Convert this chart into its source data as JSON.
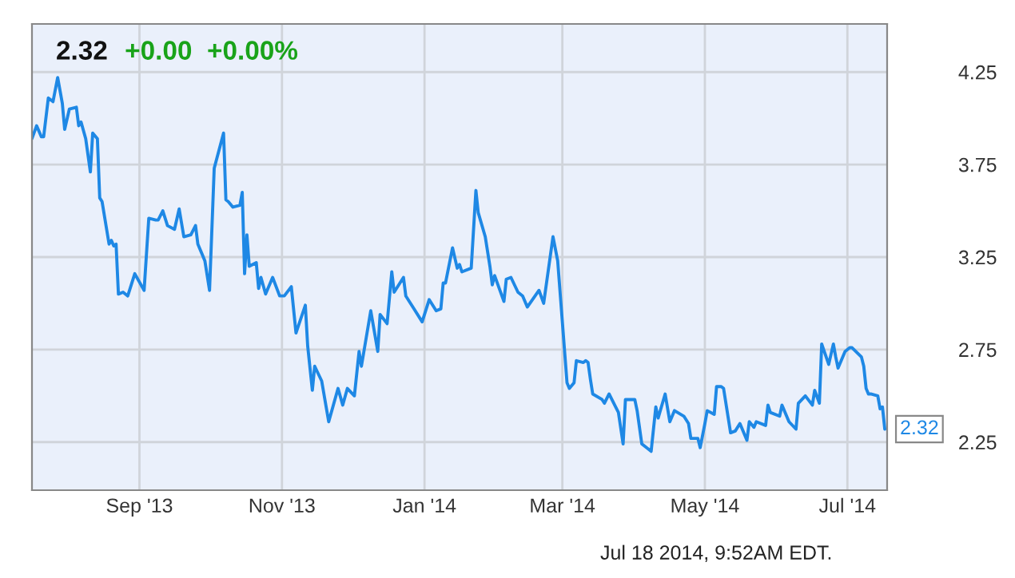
{
  "chart_data": {
    "type": "line",
    "title": "2.32",
    "subtitle": "+0.00  +0.00%",
    "annotations": [
      {
        "text": "2.32",
        "x": "2014-07-17",
        "y": 2.32
      },
      "Jul 18 2014, 9:52AM EDT."
    ],
    "x": [
      "2013-07-17",
      "2013-07-19",
      "2013-07-21",
      "2013-07-22",
      "2013-07-24",
      "2013-07-26",
      "2013-07-28",
      "2013-07-30",
      "2013-07-31",
      "2013-08-02",
      "2013-08-05",
      "2013-08-06",
      "2013-08-07",
      "2013-08-09",
      "2013-08-11",
      "2013-08-12",
      "2013-08-14",
      "2013-08-15",
      "2013-08-16",
      "2013-08-19",
      "2013-08-20",
      "2013-08-21",
      "2013-08-22",
      "2013-08-23",
      "2013-08-25",
      "2013-08-27",
      "2013-08-30",
      "2013-09-03",
      "2013-09-05",
      "2013-09-08",
      "2013-09-09",
      "2013-09-11",
      "2013-09-13",
      "2013-09-16",
      "2013-09-18",
      "2013-09-20",
      "2013-09-23",
      "2013-09-25",
      "2013-09-26",
      "2013-09-29",
      "2013-10-01",
      "2013-10-03",
      "2013-10-07",
      "2013-10-08",
      "2013-10-09",
      "2013-10-11",
      "2013-10-14",
      "2013-10-15",
      "2013-10-16",
      "2013-10-17",
      "2013-10-18",
      "2013-10-21",
      "2013-10-22",
      "2013-10-23",
      "2013-10-25",
      "2013-10-28",
      "2013-10-31",
      "2013-11-02",
      "2013-11-05",
      "2013-11-07",
      "2013-11-11",
      "2013-11-12",
      "2013-11-14",
      "2013-11-15",
      "2013-11-18",
      "2013-11-21",
      "2013-11-25",
      "2013-11-27",
      "2013-11-29",
      "2013-12-02",
      "2013-12-04",
      "2013-12-05",
      "2013-12-09",
      "2013-12-12",
      "2013-12-13",
      "2013-12-16",
      "2013-12-18",
      "2013-12-19",
      "2013-12-23",
      "2013-12-24",
      "2013-12-27",
      "2013-12-31",
      "2014-01-03",
      "2014-01-06",
      "2014-01-08",
      "2014-01-09",
      "2014-01-10",
      "2014-01-13",
      "2014-01-15",
      "2014-01-16",
      "2014-01-17",
      "2014-01-21",
      "2014-01-23",
      "2014-01-24",
      "2014-01-27",
      "2014-01-29",
      "2014-01-30",
      "2014-01-31",
      "2014-02-04",
      "2014-02-05",
      "2014-02-07",
      "2014-02-10",
      "2014-02-12",
      "2014-02-14",
      "2014-02-19",
      "2014-02-21",
      "2014-02-25",
      "2014-02-27",
      "2014-03-03",
      "2014-03-04",
      "2014-03-06",
      "2014-03-07",
      "2014-03-10",
      "2014-03-11",
      "2014-03-12",
      "2014-03-13",
      "2014-03-14",
      "2014-03-18",
      "2014-03-19",
      "2014-03-21",
      "2014-03-25",
      "2014-03-27",
      "2014-03-28",
      "2014-04-01",
      "2014-04-02",
      "2014-04-04",
      "2014-04-08",
      "2014-04-10",
      "2014-04-11",
      "2014-04-14",
      "2014-04-16",
      "2014-04-18",
      "2014-04-22",
      "2014-04-24",
      "2014-04-25",
      "2014-04-28",
      "2014-04-29",
      "2014-05-01",
      "2014-05-02",
      "2014-05-05",
      "2014-05-06",
      "2014-05-08",
      "2014-05-09",
      "2014-05-12",
      "2014-05-14",
      "2014-05-16",
      "2014-05-19",
      "2014-05-20",
      "2014-05-22",
      "2014-05-23",
      "2014-05-27",
      "2014-05-28",
      "2014-05-29",
      "2014-06-02",
      "2014-06-03",
      "2014-06-06",
      "2014-06-09",
      "2014-06-10",
      "2014-06-13",
      "2014-06-16",
      "2014-06-17",
      "2014-06-19",
      "2014-06-20",
      "2014-06-23",
      "2014-06-25",
      "2014-06-26",
      "2014-06-27",
      "2014-06-30",
      "2014-07-02",
      "2014-07-03",
      "2014-07-07",
      "2014-07-08",
      "2014-07-09",
      "2014-07-10",
      "2014-07-11",
      "2014-07-14",
      "2014-07-15",
      "2014-07-16",
      "2014-07-17"
    ],
    "series": [
      {
        "color": "#1e88e5",
        "values": [
          3.89,
          3.96,
          3.9,
          3.9,
          4.11,
          4.09,
          4.22,
          4.08,
          3.94,
          4.05,
          4.06,
          3.96,
          3.98,
          3.89,
          3.71,
          3.92,
          3.89,
          3.57,
          3.55,
          3.32,
          3.34,
          3.31,
          3.32,
          3.05,
          3.06,
          3.04,
          3.16,
          3.07,
          3.46,
          3.45,
          3.45,
          3.5,
          3.42,
          3.4,
          3.51,
          3.36,
          3.37,
          3.42,
          3.32,
          3.23,
          3.07,
          3.73,
          3.92,
          3.56,
          3.55,
          3.52,
          3.53,
          3.6,
          3.16,
          3.37,
          3.2,
          3.22,
          3.08,
          3.14,
          3.05,
          3.14,
          3.04,
          3.04,
          3.09,
          2.84,
          2.99,
          2.77,
          2.53,
          2.66,
          2.58,
          2.36,
          2.54,
          2.45,
          2.54,
          2.5,
          2.74,
          2.66,
          2.96,
          2.74,
          2.94,
          2.89,
          3.17,
          3.06,
          3.14,
          3.04,
          2.98,
          2.9,
          3.02,
          2.96,
          2.97,
          3.11,
          3.11,
          3.3,
          3.19,
          3.21,
          3.17,
          3.19,
          3.61,
          3.49,
          3.36,
          3.2,
          3.1,
          3.15,
          3.01,
          3.13,
          3.14,
          3.06,
          3.04,
          2.98,
          3.07,
          3.0,
          3.36,
          3.23,
          2.57,
          2.54,
          2.57,
          2.69,
          2.68,
          2.69,
          2.68,
          2.59,
          2.51,
          2.48,
          2.46,
          2.51,
          2.41,
          2.24,
          2.48,
          2.48,
          2.42,
          2.24,
          2.2,
          2.44,
          2.38,
          2.51,
          2.36,
          2.42,
          2.39,
          2.35,
          2.27,
          2.27,
          2.22,
          2.35,
          2.42,
          2.4,
          2.55,
          2.55,
          2.54,
          2.3,
          2.31,
          2.35,
          2.26,
          2.36,
          2.33,
          2.36,
          2.34,
          2.45,
          2.41,
          2.39,
          2.45,
          2.36,
          2.32,
          2.46,
          2.5,
          2.45,
          2.53,
          2.46,
          2.78,
          2.67,
          2.78,
          2.71,
          2.65,
          2.74,
          2.76,
          2.76,
          2.71,
          2.66,
          2.54,
          2.51,
          2.51,
          2.5,
          2.43,
          2.44,
          2.32
        ]
      }
    ],
    "xlim": [
      "2013-07-17",
      "2014-07-18"
    ],
    "xticks": [
      {
        "value": "2013-09-01",
        "label": "Sep '13"
      },
      {
        "value": "2013-11-01",
        "label": "Nov '13"
      },
      {
        "value": "2014-01-01",
        "label": "Jan '14"
      },
      {
        "value": "2014-03-01",
        "label": "Mar '14"
      },
      {
        "value": "2014-05-01",
        "label": "May '14"
      },
      {
        "value": "2014-07-01",
        "label": "Jul '14"
      }
    ],
    "ylim": [
      1.99,
      4.51
    ],
    "yticks": [
      2.25,
      2.75,
      3.25,
      3.75,
      4.25
    ],
    "grid": true,
    "marker": "none",
    "line_style": "solid"
  }
}
